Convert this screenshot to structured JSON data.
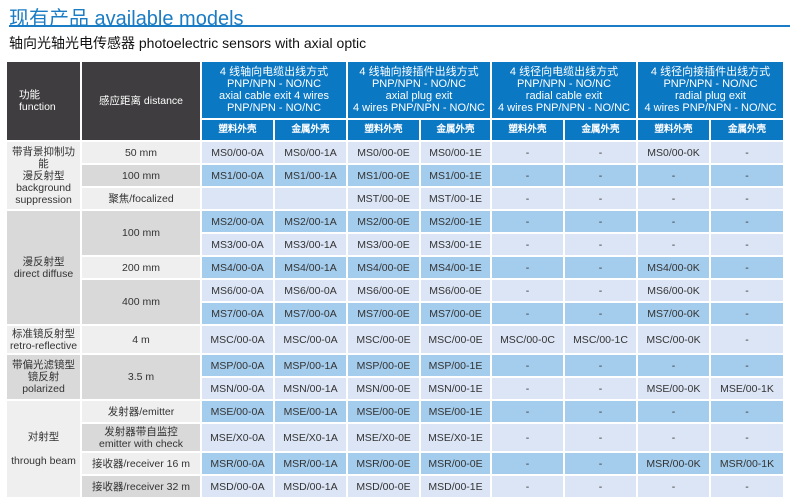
{
  "header": {
    "title": "现有产品 available models",
    "subtitle": "轴向光轴光电传感器 photoelectric sensors with axial  optic"
  },
  "colors": {
    "accent": "#1a7cc4",
    "header_dark": "#3f3d3f",
    "header_blue": "#0b78c4",
    "row_light": "#dce5f5",
    "row_blue": "#a4ccec"
  },
  "table": {
    "col_function": "功能\nfunction",
    "col_distance": "感应距离 distance",
    "groups": [
      {
        "label": "4 线轴向电缆出线方式\nPNP/NPN - NO/NC\naxial cable exit 4 wires\nPNP/NPN - NO/NC"
      },
      {
        "label": "4 线轴向接插件出线方式\nPNP/NPN - NO/NC\naxial plug exit\n4 wires PNP/NPN - NO/NC"
      },
      {
        "label": "4 线径向电缆出线方式\nPNP/NPN - NO/NC\nradial cable exit\n4 wires PNP/NPN - NO/NC"
      },
      {
        "label": "4 线径向接插件出线方式\nPNP/NPN - NO/NC\nradial plug exit\n4 wires PNP/NPN - NO/NC"
      }
    ],
    "subheaders": [
      "塑料外壳",
      "金属外壳",
      "塑料外壳",
      "金属外壳",
      "塑料外壳",
      "金属外壳",
      "塑料外壳",
      "金属外壳"
    ],
    "functions": [
      {
        "label": "带背景抑制功能\n漫反射型\nbackground\nsuppression",
        "rows": 3
      },
      {
        "label": "漫反射型\ndirect diffuse",
        "rows": 5
      },
      {
        "label": "标准镜反射型\nretro-reflective",
        "rows": 1
      },
      {
        "label": "带偏光滤镜型\n镜反射\npolarized",
        "rows": 2
      },
      {
        "label": "对射型\n\nthrough beam",
        "rows": 4
      }
    ],
    "distances": [
      {
        "label": "50 mm",
        "rows": 1
      },
      {
        "label": "100 mm",
        "rows": 1
      },
      {
        "label": "聚焦/focalized",
        "rows": 1
      },
      {
        "label": "100 mm",
        "rows": 2
      },
      {
        "label": "200 mm",
        "rows": 1
      },
      {
        "label": "400 mm",
        "rows": 2
      },
      {
        "label": "4 m",
        "rows": 1
      },
      {
        "label": "3.5 m",
        "rows": 2
      },
      {
        "label": "发射器/emitter",
        "rows": 1
      },
      {
        "label": "发射器带自监控\nemitter with check",
        "rows": 1
      },
      {
        "label": "接收器/receiver 16 m",
        "rows": 1
      },
      {
        "label": "接收器/receiver 32 m",
        "rows": 1
      }
    ],
    "rows": [
      [
        "MS0/00-0A",
        "MS0/00-1A",
        "MS0/00-0E",
        "MS0/00-1E",
        "-",
        "-",
        "MS0/00-0K",
        "-"
      ],
      [
        "MS1/00-0A",
        "MS1/00-1A",
        "MS1/00-0E",
        "MS1/00-1E",
        "-",
        "-",
        "-",
        "-"
      ],
      [
        "",
        "",
        "MST/00-0E",
        "MST/00-1E",
        "-",
        "-",
        "-",
        "-"
      ],
      [
        "MS2/00-0A",
        "MS2/00-1A",
        "MS2/00-0E",
        "MS2/00-1E",
        "-",
        "-",
        "-",
        "-"
      ],
      [
        "MS3/00-0A",
        "MS3/00-1A",
        "MS3/00-0E",
        "MS3/00-1E",
        "-",
        "-",
        "-",
        "-"
      ],
      [
        "MS4/00-0A",
        "MS4/00-1A",
        "MS4/00-0E",
        "MS4/00-1E",
        "-",
        "-",
        "MS4/00-0K",
        "-"
      ],
      [
        "MS6/00-0A",
        "MS6/00-0A",
        "MS6/00-0E",
        "MS6/00-0E",
        "-",
        "-",
        "MS6/00-0K",
        "-"
      ],
      [
        "MS7/00-0A",
        "MS7/00-0A",
        "MS7/00-0E",
        "MS7/00-0E",
        "-",
        "-",
        "MS7/00-0K",
        "-"
      ],
      [
        "MSC/00-0A",
        "MSC/00-0A",
        "MSC/00-0E",
        "MSC/00-0E",
        "MSC/00-0C",
        "MSC/00-1C",
        "MSC/00-0K",
        "-"
      ],
      [
        "MSP/00-0A",
        "MSP/00-1A",
        "MSP/00-0E",
        "MSP/00-1E",
        "-",
        "-",
        "-",
        "-"
      ],
      [
        "MSN/00-0A",
        "MSN/00-1A",
        "MSN/00-0E",
        "MSN/00-1E",
        "-",
        "-",
        "MSE/00-0K",
        "MSE/00-1K"
      ],
      [
        "MSE/00-0A",
        "MSE/00-1A",
        "MSE/00-0E",
        "MSE/00-1E",
        "-",
        "-",
        "-",
        "-"
      ],
      [
        "MSE/X0-0A",
        "MSE/X0-1A",
        "MSE/X0-0E",
        "MSE/X0-1E",
        "-",
        "-",
        "-",
        "-"
      ],
      [
        "MSR/00-0A",
        "MSR/00-1A",
        "MSR/00-0E",
        "MSR/00-0E",
        "-",
        "-",
        "MSR/00-0K",
        "MSR/00-1K"
      ],
      [
        "MSD/00-0A",
        "MSD/00-1A",
        "MSD/00-0E",
        "MSD/00-1E",
        "-",
        "-",
        "-",
        "-"
      ]
    ]
  }
}
